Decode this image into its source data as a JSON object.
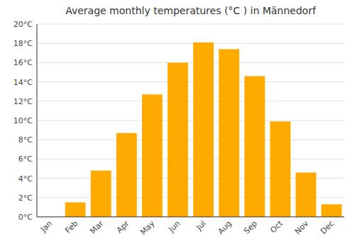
{
  "chart_data": {
    "type": "bar",
    "title": "Average monthly temperatures (°C ) in Männedorf",
    "categories": [
      "Jan",
      "Feb",
      "Mar",
      "Apr",
      "May",
      "Jun",
      "Jul",
      "Aug",
      "Sep",
      "Oct",
      "Nov",
      "Dec"
    ],
    "values": [
      0.0,
      1.5,
      4.8,
      8.7,
      12.7,
      16.0,
      18.1,
      17.4,
      14.6,
      9.9,
      4.6,
      1.3
    ],
    "color": "#FFAA00",
    "ylim": [
      0,
      20
    ],
    "yticks": [
      {
        "value": 0,
        "label": "0°C"
      },
      {
        "value": 2,
        "label": "2°C"
      },
      {
        "value": 4,
        "label": "4°C"
      },
      {
        "value": 6,
        "label": "6°C"
      },
      {
        "value": 8,
        "label": "8°C"
      },
      {
        "value": 10,
        "label": "10°C"
      },
      {
        "value": 12,
        "label": "12°C"
      },
      {
        "value": 14,
        "label": "14°C"
      },
      {
        "value": 16,
        "label": "16°C"
      },
      {
        "value": 18,
        "label": "18°C"
      },
      {
        "value": 20,
        "label": "20°C"
      }
    ],
    "grid": true
  }
}
